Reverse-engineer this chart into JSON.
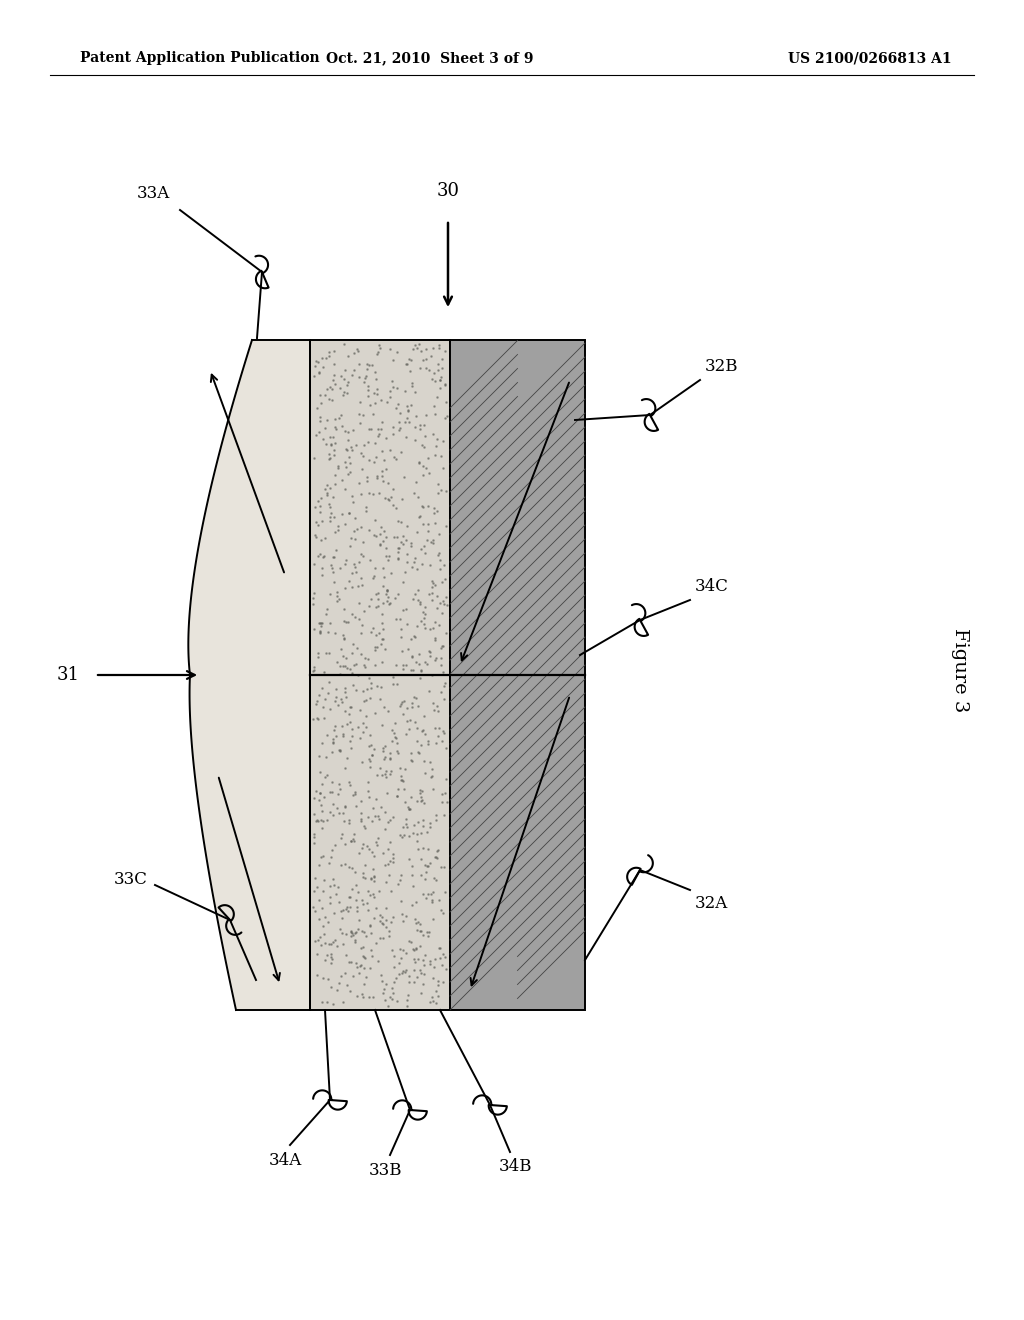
{
  "bg_color": "#ffffff",
  "header_left": "Patent Application Publication",
  "header_mid": "Oct. 21, 2010  Sheet 3 of 9",
  "header_right": "US 2100/0266813 A1",
  "figure_label": "Figure 3",
  "lw": 1.4,
  "mid_fill": "#d8d4cc",
  "right_fill": "#a0a0a0",
  "left_fill": "#e8e4dc"
}
